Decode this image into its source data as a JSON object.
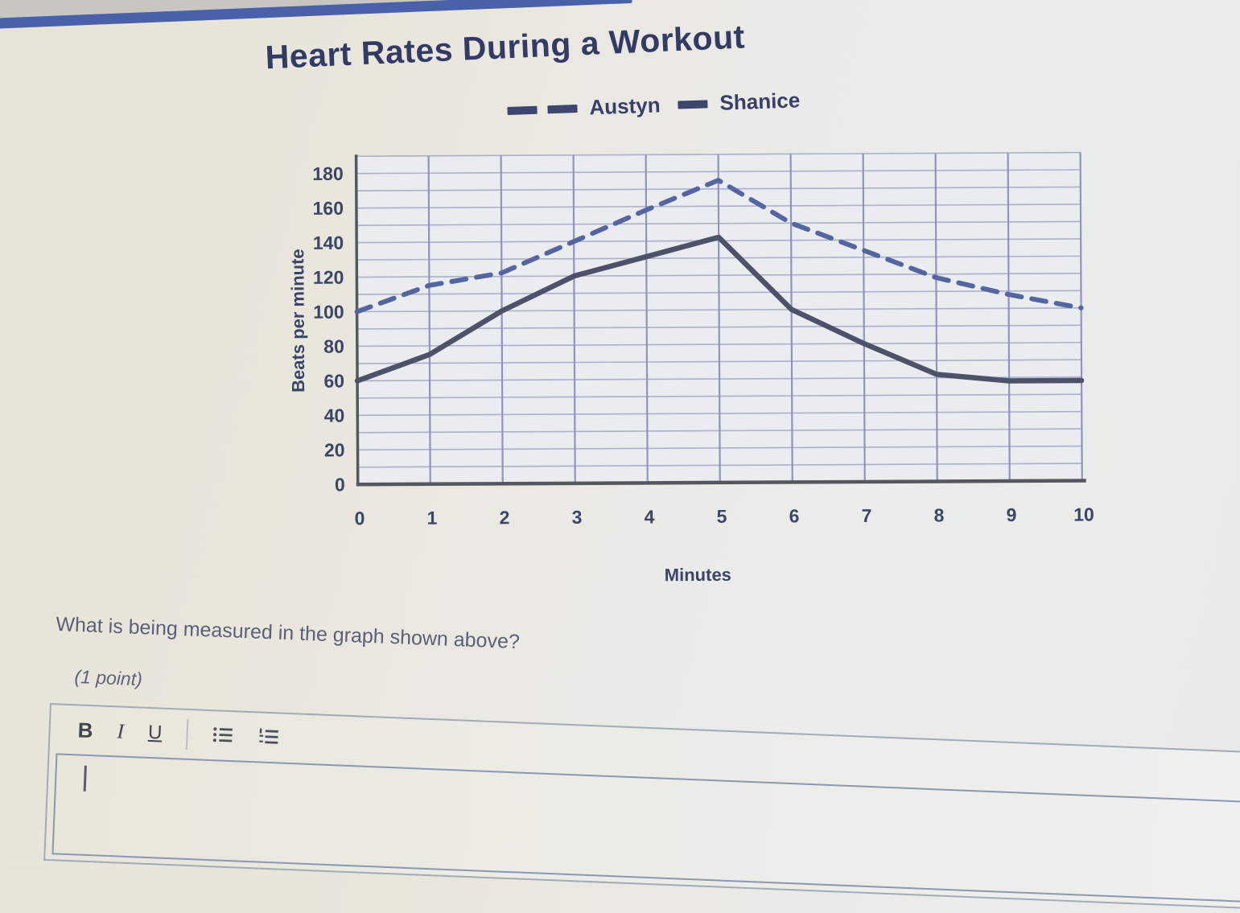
{
  "header": {
    "title": "Heart Rates During a Workout"
  },
  "question": {
    "text": "What is being measured in the graph shown above?",
    "points": "(1 point)"
  },
  "editor": {
    "bold_label": "B",
    "italic_label": "I",
    "underline_label": "U",
    "value": "",
    "placeholder": ""
  },
  "accent_colors": {
    "top_stripe": "#4a60a8",
    "title_text": "#323b63",
    "legend_marker": "#3c4670"
  },
  "chart_data": {
    "type": "line",
    "title": "Heart Rates During a Workout",
    "xlabel": "Minutes",
    "ylabel": "Beats per minute",
    "x": [
      0,
      1,
      2,
      3,
      4,
      5,
      6,
      7,
      8,
      9,
      10
    ],
    "series": [
      {
        "name": "Austyn",
        "style": "dashed",
        "color": "#5565a0",
        "values": [
          100,
          115,
          122,
          140,
          158,
          175,
          150,
          134,
          118,
          108,
          100
        ]
      },
      {
        "name": "Shanice",
        "style": "solid",
        "color": "#4c5268",
        "values": [
          60,
          75,
          100,
          120,
          131,
          142,
          100,
          80,
          62,
          58,
          58
        ]
      }
    ],
    "xlim": [
      0,
      10
    ],
    "ylim": [
      0,
      190
    ],
    "grid_step": 10,
    "ytick_step": 20,
    "ytick_max": 180,
    "grid": true,
    "legend_position": "top",
    "colors": {
      "plot_bg": "#eaedf0",
      "grid_h": "#aab0cc",
      "grid_v": "#8d95bb",
      "axis": "#54575f"
    }
  }
}
